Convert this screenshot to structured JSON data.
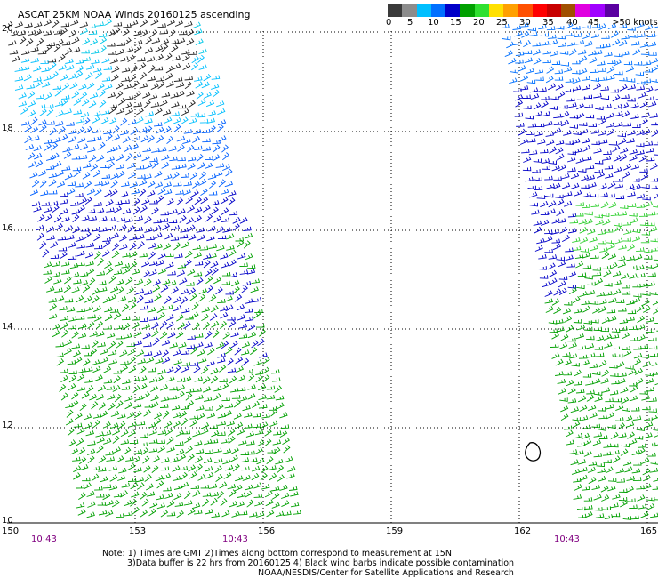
{
  "title": "ASCAT 25KM NOAA Winds 20160125 ascending",
  "legend": {
    "colors": [
      "#3a3a3a",
      "#8c8c8c",
      "#00bfff",
      "#0070ff",
      "#0000c8",
      "#00a000",
      "#30e030",
      "#ffe000",
      "#ffa000",
      "#ff5000",
      "#ff0000",
      "#c80000",
      "#a05000",
      "#e000e0",
      "#a000ff",
      "#5a00a0"
    ],
    "labels": [
      "0",
      "5",
      "10",
      "15",
      "20",
      "25",
      "30",
      "35",
      "40",
      "45",
      ">50 knots"
    ]
  },
  "map": {
    "lat_labels": [
      "20",
      "18",
      "16",
      "14",
      "12",
      "10"
    ],
    "lon_labels": [
      "150",
      "153",
      "156",
      "159",
      "162",
      "165"
    ],
    "time_labels": [
      "10:43",
      "10:43",
      "10:43"
    ],
    "coastline": "island",
    "grid": "dotted"
  },
  "notes": [
    "Note: 1) Times are GMT 2)Times along bottom correspond to measurement at 15N",
    "3)Data buffer is 22 hrs from 20160125 4) Black wind barbs indicate possible contamination",
    "NOAA/NESDIS/Center for Satellite Applications and Research"
  ]
}
